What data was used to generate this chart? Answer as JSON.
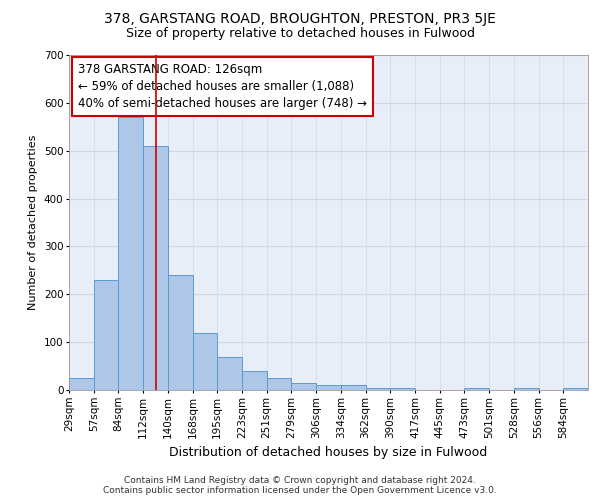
{
  "title": "378, GARSTANG ROAD, BROUGHTON, PRESTON, PR3 5JE",
  "subtitle": "Size of property relative to detached houses in Fulwood",
  "xlabel": "Distribution of detached houses by size in Fulwood",
  "ylabel": "Number of detached properties",
  "footer_line1": "Contains HM Land Registry data © Crown copyright and database right 2024.",
  "footer_line2": "Contains public sector information licensed under the Open Government Licence v3.0.",
  "annotation_lines": [
    "378 GARSTANG ROAD: 126sqm",
    "← 59% of detached houses are smaller (1,088)",
    "40% of semi-detached houses are larger (748) →"
  ],
  "bar_values": [
    25,
    230,
    570,
    510,
    240,
    120,
    70,
    40,
    25,
    15,
    10,
    10,
    5,
    5,
    0,
    0,
    5,
    0,
    5,
    0,
    5
  ],
  "bar_labels": [
    "29sqm",
    "57sqm",
    "84sqm",
    "112sqm",
    "140sqm",
    "168sqm",
    "195sqm",
    "223sqm",
    "251sqm",
    "279sqm",
    "306sqm",
    "334sqm",
    "362sqm",
    "390sqm",
    "417sqm",
    "445sqm",
    "473sqm",
    "501sqm",
    "528sqm",
    "556sqm",
    "584sqm"
  ],
  "bar_color": "#aec6e8",
  "bar_edge_color": "#5b9bd5",
  "grid_color": "#d0d8e8",
  "background_color": "#e8eef8",
  "redline_color": "#cc0000",
  "ylim": [
    0,
    700
  ],
  "yticks": [
    0,
    100,
    200,
    300,
    400,
    500,
    600,
    700
  ],
  "title_fontsize": 10,
  "subtitle_fontsize": 9,
  "xlabel_fontsize": 9,
  "ylabel_fontsize": 8,
  "tick_fontsize": 7.5,
  "annotation_fontsize": 8.5,
  "footer_fontsize": 6.5
}
